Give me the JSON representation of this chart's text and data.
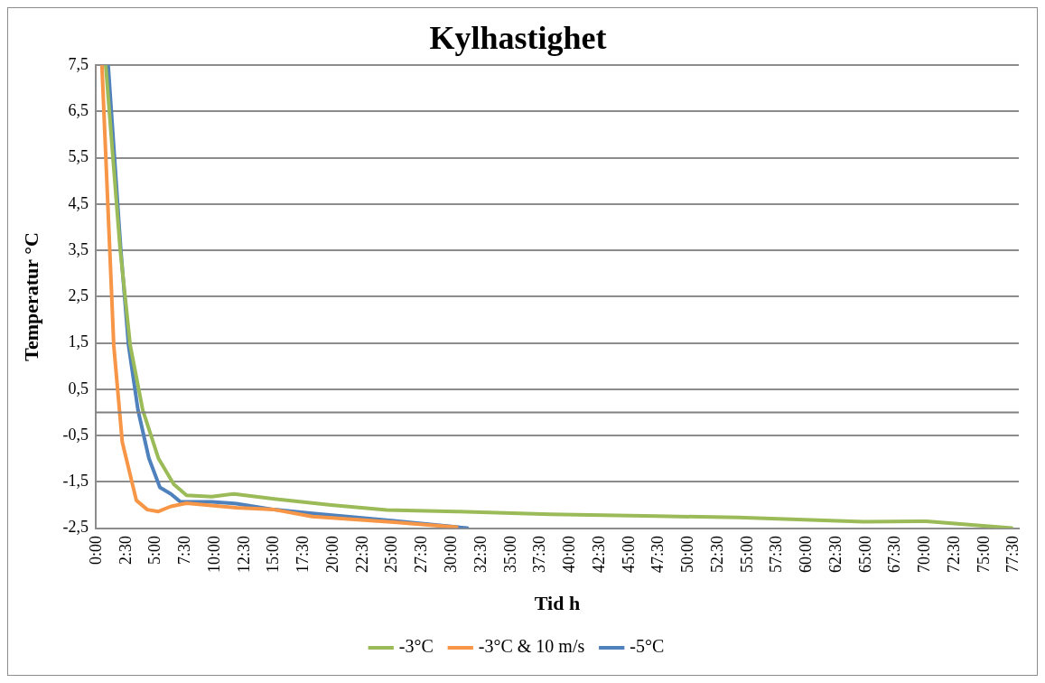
{
  "chart_data": {
    "type": "line",
    "title": "Kylhastighet",
    "xlabel": "Tid h",
    "ylabel": "Temperatur °C",
    "xlim": [
      0,
      78
    ],
    "ylim": [
      -2.5,
      7.5
    ],
    "xticks": [
      {
        "value": 0,
        "label": "0:00"
      },
      {
        "value": 2.5,
        "label": "2:30"
      },
      {
        "value": 5,
        "label": "5:00"
      },
      {
        "value": 7.5,
        "label": "7:30"
      },
      {
        "value": 10,
        "label": "10:00"
      },
      {
        "value": 12.5,
        "label": "12:30"
      },
      {
        "value": 15,
        "label": "15:00"
      },
      {
        "value": 17.5,
        "label": "17:30"
      },
      {
        "value": 20,
        "label": "20:00"
      },
      {
        "value": 22.5,
        "label": "22:30"
      },
      {
        "value": 25,
        "label": "25:00"
      },
      {
        "value": 27.5,
        "label": "27:30"
      },
      {
        "value": 30,
        "label": "30:00"
      },
      {
        "value": 32.5,
        "label": "32:30"
      },
      {
        "value": 35,
        "label": "35:00"
      },
      {
        "value": 37.5,
        "label": "37:30"
      },
      {
        "value": 40,
        "label": "40:00"
      },
      {
        "value": 42.5,
        "label": "42:30"
      },
      {
        "value": 45,
        "label": "45:00"
      },
      {
        "value": 47.5,
        "label": "47:30"
      },
      {
        "value": 50,
        "label": "50:00"
      },
      {
        "value": 52.5,
        "label": "52:30"
      },
      {
        "value": 55,
        "label": "55:00"
      },
      {
        "value": 57.5,
        "label": "57:30"
      },
      {
        "value": 60,
        "label": "60:00"
      },
      {
        "value": 62.5,
        "label": "62:30"
      },
      {
        "value": 65,
        "label": "65:00"
      },
      {
        "value": 67.5,
        "label": "67:30"
      },
      {
        "value": 70,
        "label": "70:00"
      },
      {
        "value": 72.5,
        "label": "72:30"
      },
      {
        "value": 75,
        "label": "75:00"
      },
      {
        "value": 77.5,
        "label": "77:30"
      }
    ],
    "yticks": [
      {
        "value": -2.5,
        "label": "-2,5"
      },
      {
        "value": -1.5,
        "label": "-1,5"
      },
      {
        "value": -0.5,
        "label": "-0,5"
      },
      {
        "value": 0.5,
        "label": "0,5"
      },
      {
        "value": 1.5,
        "label": "1,5"
      },
      {
        "value": 2.5,
        "label": "2,5"
      },
      {
        "value": 3.5,
        "label": "3,5"
      },
      {
        "value": 4.5,
        "label": "4,5"
      },
      {
        "value": 5.5,
        "label": "5,5"
      },
      {
        "value": 6.5,
        "label": "6,5"
      },
      {
        "value": 7.5,
        "label": "7,5"
      }
    ],
    "grid": "y",
    "legend": "bottom",
    "marker": "none",
    "line_style": "solid",
    "ref_lines": [
      {
        "axis": "y",
        "value": 0,
        "color": "#808080"
      }
    ],
    "series": [
      {
        "name": "-3°C",
        "color": "#9bbb59",
        "x": [
          0.85,
          2.07,
          2.92,
          3.98,
          5.3,
          6.6,
          7.68,
          9.8,
          11.7,
          15.1,
          19.9,
          24.6,
          30.5,
          38.4,
          47.4,
          54.3,
          64.9,
          70.2,
          77.4
        ],
        "values": [
          7.5,
          3.53,
          1.45,
          0.05,
          -0.99,
          -1.55,
          -1.79,
          -1.82,
          -1.76,
          -1.87,
          -2.0,
          -2.11,
          -2.14,
          -2.2,
          -2.24,
          -2.27,
          -2.36,
          -2.35,
          -2.5
        ]
      },
      {
        "name": "-3°C & 10 m/s",
        "color": "#f79646",
        "x": [
          0.53,
          1.19,
          1.53,
          2.25,
          3.44,
          4.37,
          5.3,
          6.36,
          7.68,
          11.9,
          15.1,
          18.3,
          25.2,
          30.5
        ],
        "values": [
          7.5,
          3.53,
          1.45,
          -0.64,
          -1.9,
          -2.1,
          -2.14,
          -2.03,
          -1.96,
          -2.06,
          -2.1,
          -2.25,
          -2.37,
          -2.48
        ]
      },
      {
        "name": "-5°C",
        "color": "#4f81bd",
        "x": [
          1.06,
          2.12,
          2.78,
          3.58,
          4.5,
          5.43,
          6.36,
          7.15,
          9.8,
          11.9,
          15.1,
          18.3,
          25.2,
          31.4
        ],
        "values": [
          7.5,
          3.53,
          1.45,
          0.05,
          -0.99,
          -1.62,
          -1.76,
          -1.93,
          -1.93,
          -1.97,
          -2.1,
          -2.18,
          -2.34,
          -2.5
        ]
      }
    ]
  }
}
